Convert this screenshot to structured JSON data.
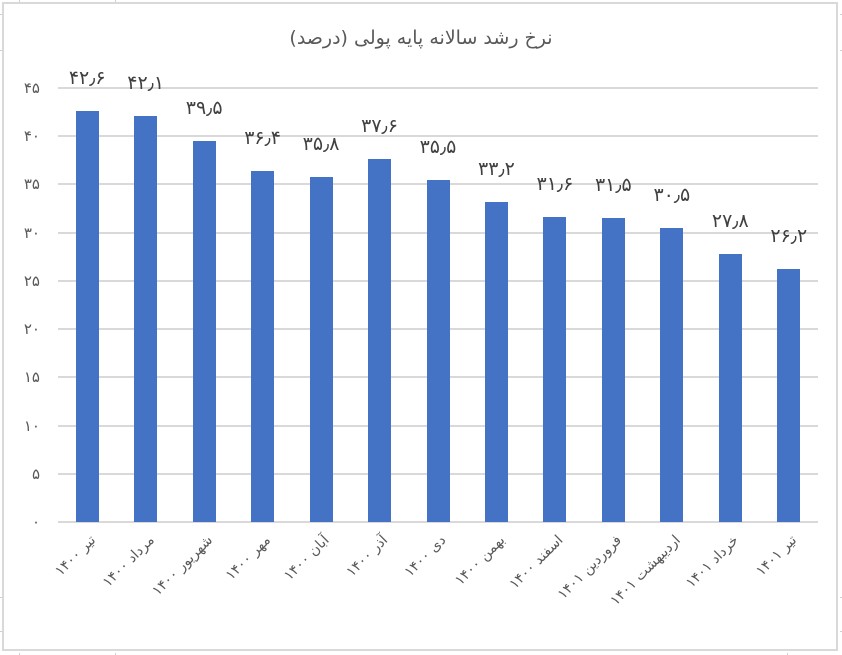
{
  "chart_data": {
    "type": "bar",
    "title": "نرخ رشد سالانه پایه پولی (درصد)",
    "xlabel": "",
    "ylabel": "",
    "ylim": [
      0,
      45
    ],
    "yticks": [
      0,
      5,
      10,
      15,
      20,
      25,
      30,
      35,
      40,
      45
    ],
    "ytick_labels": [
      "۰",
      "۵",
      "۱۰",
      "۱۵",
      "۲۰",
      "۲۵",
      "۳۰",
      "۳۵",
      "۴۰",
      "۴۵"
    ],
    "grid": true,
    "legend": null,
    "bar_color": "#4472C4",
    "categories": [
      "تیر ۱۴۰۰",
      "مرداد ۱۴۰۰",
      "شهریور ۱۴۰۰",
      "مهر ۱۴۰۰",
      "آبان ۱۴۰۰",
      "آذر ۱۴۰۰",
      "دی ۱۴۰۰",
      "بهمن ۱۴۰۰",
      "اسفند ۱۴۰۰",
      "فروردین ۱۴۰۱",
      "اردیبهشت ۱۴۰۱",
      "خرداد ۱۴۰۱",
      "تیر ۱۴۰۱"
    ],
    "values": [
      42.6,
      42.1,
      39.5,
      36.4,
      35.8,
      37.6,
      35.5,
      33.2,
      31.6,
      31.5,
      30.5,
      27.8,
      26.2
    ],
    "data_labels": [
      "۴۲٫۶",
      "۴۲٫۱",
      "۳۹٫۵",
      "۳۶٫۴",
      "۳۵٫۸",
      "۳۷٫۶",
      "۳۵٫۵",
      "۳۳٫۲",
      "۳۱٫۶",
      "۳۱٫۵",
      "۳۰٫۵",
      "۲۷٫۸",
      "۲۶٫۲"
    ]
  }
}
